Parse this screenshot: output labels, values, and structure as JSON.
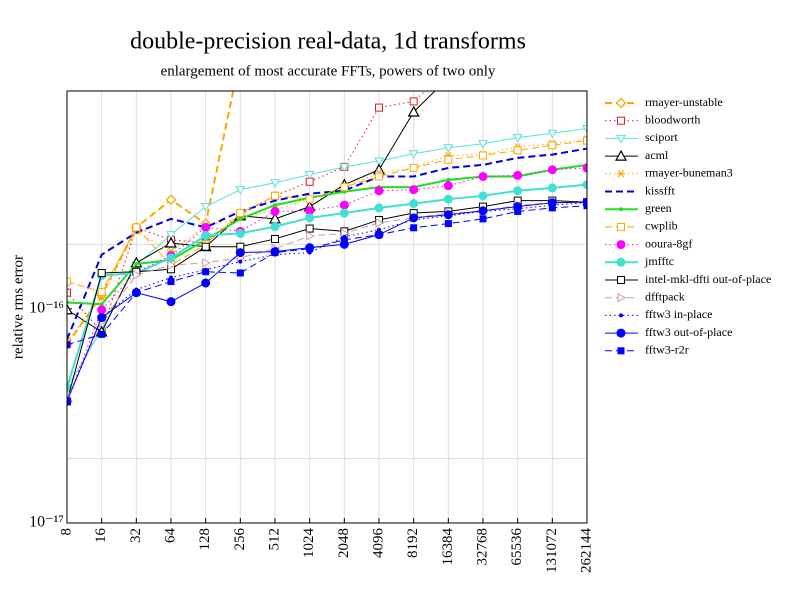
{
  "chart_data": {
    "type": "line",
    "title": "double-precision real-data, 1d transforms",
    "subtitle": "enlargement of most accurate FFTs, powers of two only",
    "y_label": "relative rms error",
    "y_log": true,
    "grid": true,
    "y_minor_grid": [
      2e-17,
      2e-16
    ],
    "legend": "right",
    "categories": [
      "8",
      "16",
      "32",
      "64",
      "128",
      "256",
      "512",
      "1024",
      "2048",
      "4096",
      "8192",
      "16384",
      "32768",
      "65536",
      "131072",
      "262144"
    ],
    "ylim": [
      1e-17,
      1.04e-15
    ],
    "yticks": [
      {
        "value": 1e-17,
        "label": "10⁻¹⁷"
      },
      {
        "value": 1e-16,
        "label": "10⁻¹⁶"
      }
    ],
    "series": [
      {
        "name": "rmayer-unstable",
        "color": "#ffa500",
        "dash": "dashed",
        "width": 2,
        "marker": "diamond",
        "values": [
          6.8e-17,
          1.16e-16,
          2.4e-16,
          3.23e-16,
          2.5e-16,
          1.5e-15,
          null,
          null,
          null,
          null,
          null,
          null,
          null,
          null,
          null,
          null
        ]
      },
      {
        "name": "bloodworth",
        "color": "#e41a1c",
        "dash": "dotted",
        "width": 1,
        "marker": "square",
        "values": [
          1.19e-16,
          7.8e-17,
          2.39e-16,
          2.1e-16,
          2.03e-16,
          2.75e-16,
          3.37e-16,
          3.92e-16,
          4.6e-16,
          8.7e-16,
          9.3e-16,
          1.3e-15,
          null,
          null,
          null,
          null
        ]
      },
      {
        "name": "sciport",
        "color": "#55e0d8",
        "dash": "solid",
        "width": 1,
        "marker": "tri-down",
        "values": [
          4.3e-17,
          8e-17,
          1.6e-16,
          2.22e-16,
          3e-16,
          3.6e-16,
          3.88e-16,
          4.23e-16,
          4.6e-16,
          4.9e-16,
          5.3e-16,
          5.65e-16,
          5.9e-16,
          6.3e-16,
          6.6e-16,
          6.95e-16
        ]
      },
      {
        "name": "acml",
        "color": "#000000",
        "dash": "solid",
        "width": 1,
        "marker": "triangle",
        "values": [
          9.9e-17,
          7.8e-17,
          1.64e-16,
          2.03e-16,
          1.95e-16,
          2.72e-16,
          2.63e-16,
          3e-16,
          3.8e-16,
          4.46e-16,
          8.3e-16,
          1.2e-15,
          null,
          null,
          null,
          null
        ]
      },
      {
        "name": "rmayer-buneman3",
        "color": "#ffa500",
        "dash": "dotted",
        "width": 1,
        "marker": "asterisk",
        "values": [
          7e-17,
          1.13e-16,
          2.3e-16,
          1.85e-16,
          2.44e-16,
          2.66e-16,
          2.9e-16,
          3.25e-16,
          3.7e-16,
          4.3e-16,
          4.55e-16,
          5.2e-16,
          5.25e-16,
          5.7e-16,
          5.9e-16,
          6.2e-16
        ]
      },
      {
        "name": "kissfft",
        "color": "#0000dd",
        "dash": "dashed",
        "width": 2,
        "marker": "none",
        "values": [
          7.2e-17,
          1.79e-16,
          2.27e-16,
          2.63e-16,
          2.4e-16,
          2.85e-16,
          3.2e-16,
          3.45e-16,
          3.56e-16,
          4.15e-16,
          4.15e-16,
          4.55e-16,
          4.7e-16,
          5.07e-16,
          5.25e-16,
          5.6e-16
        ]
      },
      {
        "name": "green",
        "color": "#22dd22",
        "dash": "solid",
        "width": 2,
        "marker": "dot",
        "values": [
          1.07e-16,
          1.05e-16,
          1.62e-16,
          1.69e-16,
          2.1e-16,
          2.63e-16,
          3.05e-16,
          3.3e-16,
          3.52e-16,
          3.7e-16,
          3.7e-16,
          4e-16,
          4.15e-16,
          4.15e-16,
          4.46e-16,
          4.7e-16
        ]
      },
      {
        "name": "cwplib",
        "color": "#ffa500",
        "dash": "dashed",
        "width": 1,
        "marker": "square",
        "values": [
          1.34e-16,
          1.2e-16,
          2.4e-16,
          1.6e-16,
          2e-16,
          2.8e-16,
          3.37e-16,
          3.25e-16,
          3.7e-16,
          4.15e-16,
          4.55e-16,
          4.97e-16,
          5.2e-16,
          5.5e-16,
          5.8e-16,
          6.1e-16
        ]
      },
      {
        "name": "ooura-8gf",
        "color": "#ff00ff",
        "dash": "dotted",
        "width": 1,
        "marker": "bigdot",
        "values": [
          3.7e-17,
          9.9e-17,
          1.49e-16,
          1.77e-16,
          2.4e-16,
          2.3e-16,
          2.85e-16,
          2.87e-16,
          3.05e-16,
          3.56e-16,
          3.6e-16,
          3.76e-16,
          4.15e-16,
          4.2e-16,
          4.46e-16,
          4.55e-16
        ]
      },
      {
        "name": "jmfftc",
        "color": "#40e0d0",
        "dash": "solid",
        "width": 2,
        "marker": "bigdot",
        "values": [
          4.3e-17,
          1.43e-16,
          1.47e-16,
          1.73e-16,
          2.2e-16,
          2.25e-16,
          2.42e-16,
          2.66e-16,
          2.8e-16,
          2.96e-16,
          3.1e-16,
          3.25e-16,
          3.37e-16,
          3.56e-16,
          3.67e-16,
          3.8e-16
        ]
      },
      {
        "name": "intel-mkl-dfti out-of-place",
        "color": "#000000",
        "dash": "solid",
        "width": 1,
        "marker": "square",
        "values": [
          3.7e-17,
          1.47e-16,
          1.49e-16,
          1.53e-16,
          1.95e-16,
          1.95e-16,
          2.12e-16,
          2.37e-16,
          2.3e-16,
          2.6e-16,
          2.8e-16,
          2.85e-16,
          3e-16,
          3.2e-16,
          3.2e-16,
          3.15e-16
        ]
      },
      {
        "name": "dfftpack",
        "color": "#d09a9a",
        "dash": "dashed",
        "width": 1,
        "marker": "tri-right",
        "values": [
          3.8e-17,
          8.7e-17,
          1.44e-16,
          1.6e-16,
          1.64e-16,
          1.73e-16,
          1.91e-16,
          2.19e-16,
          2.25e-16,
          2.52e-16,
          2.66e-16,
          2.8e-16,
          2.85e-16,
          3.05e-16,
          3.13e-16,
          3.15e-16
        ]
      },
      {
        "name": "fftw3 in-place",
        "color": "#0000ff",
        "dash": "dotted",
        "width": 1,
        "marker": "dot",
        "values": [
          3.7e-17,
          9.1e-17,
          1.23e-16,
          1.4e-16,
          1.52e-16,
          1.66e-16,
          1.79e-16,
          1.83e-16,
          2.17e-16,
          2.34e-16,
          2.6e-16,
          2.72e-16,
          2.85e-16,
          2.93e-16,
          3.05e-16,
          3.13e-16
        ]
      },
      {
        "name": "fftw3 out-of-place",
        "color": "#0000ff",
        "dash": "solid",
        "width": 1,
        "marker": "bigdot",
        "values": [
          3.7e-17,
          9.1e-17,
          1.19e-16,
          1.08e-16,
          1.32e-16,
          1.83e-16,
          1.85e-16,
          1.93e-16,
          2e-16,
          2.22e-16,
          2.66e-16,
          2.75e-16,
          2.87e-16,
          3e-16,
          3.13e-16,
          3.15e-16
        ]
      },
      {
        "name": "fftw3-r2r",
        "color": "#0000ff",
        "dash": "dashed",
        "width": 1,
        "marker": "fsquare",
        "values": [
          6.8e-17,
          7.6e-17,
          1.19e-16,
          1.34e-16,
          1.49e-16,
          1.47e-16,
          1.83e-16,
          1.91e-16,
          2.1e-16,
          2.22e-16,
          2.39e-16,
          2.5e-16,
          2.63e-16,
          2.85e-16,
          2.96e-16,
          3.03e-16
        ]
      }
    ]
  }
}
